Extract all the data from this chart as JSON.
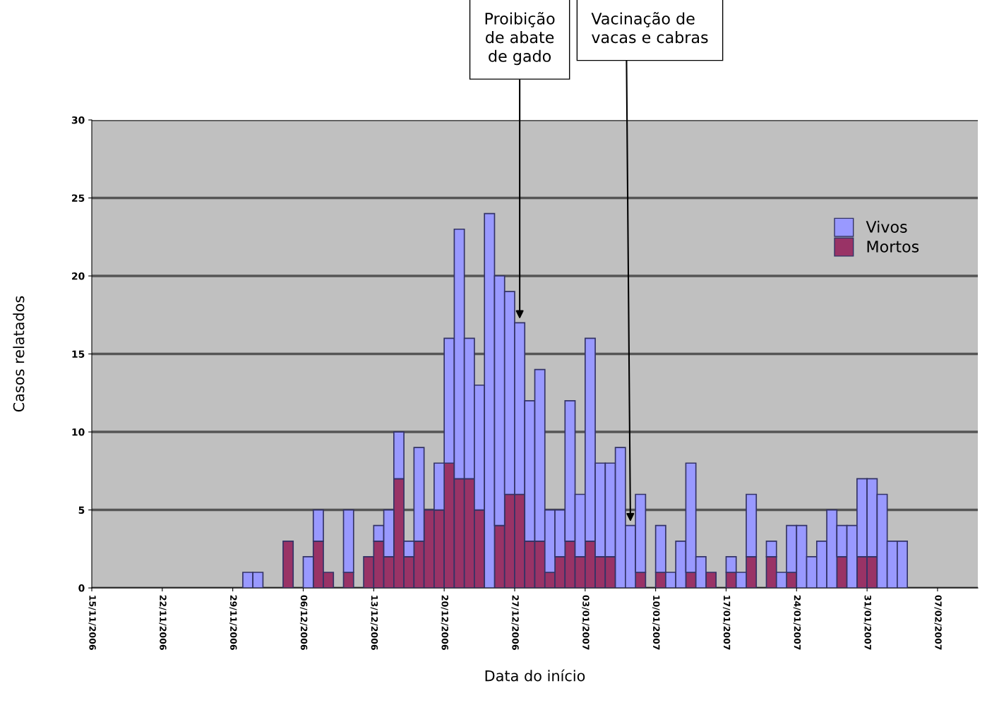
{
  "chart_data": {
    "type": "bar",
    "stacked": true,
    "xlabel": "Data do início",
    "ylabel": "Casos relatados",
    "x": [
      "2006-11-30T12:00",
      "2006-12-01T12:00",
      "2006-12-04T12:00",
      "2006-12-06T12:00",
      "2006-12-07T12:00",
      "2006-12-08T12:00",
      "2006-12-10T12:00",
      "2006-12-12T12:00",
      "2006-12-13T12:00",
      "2006-12-14T12:00",
      "2006-12-15T12:00",
      "2006-12-16T12:00",
      "2006-12-17T12:00",
      "2006-12-18T12:00",
      "2006-12-19T12:00",
      "2006-12-20T12:00",
      "2006-12-21T12:00",
      "2006-12-22T12:00",
      "2006-12-23T12:00",
      "2006-12-24T12:00",
      "2006-12-25T12:00",
      "2006-12-26T12:00",
      "2006-12-27T12:00",
      "2006-12-28T12:00",
      "2006-12-29T12:00",
      "2006-12-30T12:00",
      "2006-12-31T12:00",
      "2007-01-01T12:00",
      "2007-01-02T12:00",
      "2007-01-03T12:00",
      "2007-01-04T12:00",
      "2007-01-05T12:00",
      "2007-01-06T12:00",
      "2007-01-07T12:00",
      "2007-01-08T12:00",
      "2007-01-10T12:00",
      "2007-01-11T12:00",
      "2007-01-12T12:00",
      "2007-01-13T12:00",
      "2007-01-14T12:00",
      "2007-01-15T12:00",
      "2007-01-17T12:00",
      "2007-01-18T12:00",
      "2007-01-19T12:00",
      "2007-01-21T12:00",
      "2007-01-22T12:00",
      "2007-01-23T12:00",
      "2007-01-24T12:00",
      "2007-01-25T12:00",
      "2007-01-26T12:00",
      "2007-01-27T12:00",
      "2007-01-28T12:00",
      "2007-01-29T12:00",
      "2007-01-30T12:00",
      "2007-01-31T12:00",
      "2007-02-01T12:00",
      "2007-02-02T12:00",
      "2007-02-03T12:00"
    ],
    "series": [
      {
        "name": "Mortos",
        "color": "#993366",
        "values": [
          null,
          null,
          3,
          null,
          3,
          1,
          1,
          2,
          3,
          2,
          7,
          2,
          3,
          5,
          5,
          8,
          7,
          7,
          5,
          null,
          4,
          6,
          6,
          3,
          3,
          1,
          2,
          3,
          2,
          3,
          2,
          2,
          null,
          null,
          1,
          1,
          null,
          null,
          1,
          null,
          1,
          1,
          null,
          2,
          2,
          null,
          1,
          null,
          null,
          null,
          null,
          2,
          null,
          2,
          2,
          null,
          null,
          null
        ]
      },
      {
        "name": "Vivos",
        "color": "#9999ff",
        "values": [
          1,
          1,
          null,
          2,
          2,
          null,
          4,
          null,
          1,
          3,
          3,
          1,
          6,
          null,
          3,
          8,
          16,
          9,
          8,
          24,
          16,
          13,
          11,
          9,
          11,
          4,
          3,
          9,
          4,
          13,
          6,
          6,
          9,
          4,
          5,
          3,
          1,
          3,
          7,
          2,
          null,
          1,
          1,
          4,
          1,
          1,
          3,
          4,
          2,
          3,
          5,
          2,
          4,
          5,
          5,
          6,
          3,
          3
        ]
      }
    ],
    "xlim": [
      "2006-11-15",
      "2007-02-11"
    ],
    "xticks": [
      {
        "value": "2006-11-15",
        "label": "15/11/2006"
      },
      {
        "value": "2006-11-22",
        "label": "22/11/2006"
      },
      {
        "value": "2006-11-29",
        "label": "29/11/2006"
      },
      {
        "value": "2006-12-06",
        "label": "06/12/2006"
      },
      {
        "value": "2006-12-13",
        "label": "13/12/2006"
      },
      {
        "value": "2006-12-20",
        "label": "20/12/2006"
      },
      {
        "value": "2006-12-27",
        "label": "27/12/2006"
      },
      {
        "value": "2007-01-03",
        "label": "03/01/2007"
      },
      {
        "value": "2007-01-10",
        "label": "10/01/2007"
      },
      {
        "value": "2007-01-17",
        "label": "17/01/2007"
      },
      {
        "value": "2007-01-24",
        "label": "24/01/2007"
      },
      {
        "value": "2007-01-31",
        "label": "31/01/2007"
      },
      {
        "value": "2007-02-07",
        "label": "07/02/2007"
      }
    ],
    "ylim": [
      0,
      30
    ],
    "yticks": [
      0,
      5,
      10,
      15,
      20,
      25,
      30
    ],
    "grid": "y",
    "legend": "top right",
    "annotations": [
      {
        "text": "Proibição\nde abate\nde gado",
        "x": "2006-12-27T12:00",
        "y": 17
      },
      {
        "text": "Vacinação de\nvacas e cabras",
        "x": "2007-01-07T12:00",
        "y": 4
      }
    ]
  }
}
